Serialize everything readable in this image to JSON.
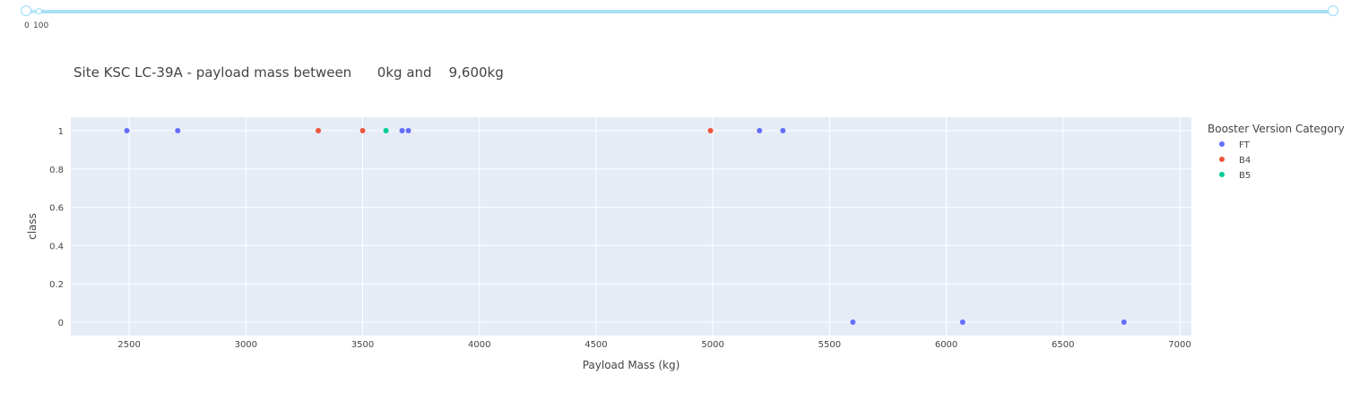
{
  "slider": {
    "min_label": "0",
    "max_label": "100",
    "value_low": 0,
    "value_high": 9600
  },
  "chart_data": {
    "type": "scatter",
    "title": "Site KSC LC-39A - payload mass between      0kg and    9,600kg",
    "xlabel": "Payload Mass (kg)",
    "ylabel": "class",
    "xlim": [
      2250,
      7050
    ],
    "ylim": [
      -0.07,
      1.07
    ],
    "x_ticks": [
      2500,
      3000,
      3500,
      4000,
      4500,
      5000,
      5500,
      6000,
      6500,
      7000
    ],
    "y_ticks": [
      0,
      0.2,
      0.4,
      0.6,
      0.8,
      1
    ],
    "y_tick_labels": [
      "0",
      "0.2",
      "0.4",
      "0.6",
      "0.8",
      "1"
    ],
    "grid": true,
    "legend_title": "Booster Version Category",
    "legend_position": "top-right",
    "series": [
      {
        "name": "FT",
        "color": "#636efa",
        "points": [
          {
            "x": 2490,
            "y": 1
          },
          {
            "x": 2708,
            "y": 1
          },
          {
            "x": 3669,
            "y": 1
          },
          {
            "x": 3696,
            "y": 1
          },
          {
            "x": 5200,
            "y": 1
          },
          {
            "x": 5300,
            "y": 1
          },
          {
            "x": 5600,
            "y": 0
          },
          {
            "x": 6070,
            "y": 0
          },
          {
            "x": 6761,
            "y": 0
          }
        ]
      },
      {
        "name": "B4",
        "color": "#ef553b",
        "points": [
          {
            "x": 3310,
            "y": 1
          },
          {
            "x": 3500,
            "y": 1
          },
          {
            "x": 4990,
            "y": 1
          }
        ]
      },
      {
        "name": "B5",
        "color": "#00cc96",
        "points": [
          {
            "x": 3600,
            "y": 1
          }
        ]
      }
    ]
  }
}
